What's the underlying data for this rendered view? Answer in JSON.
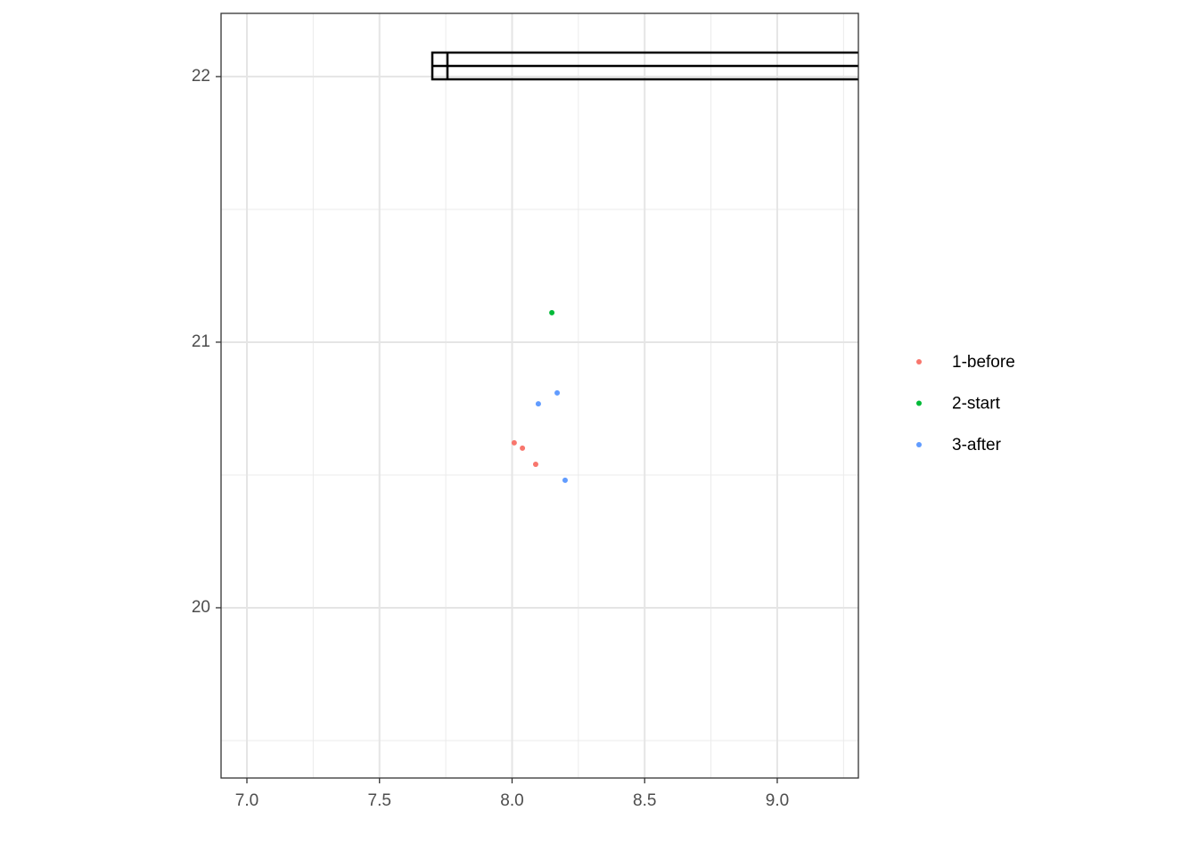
{
  "chart_data": {
    "type": "scatter",
    "series": [
      {
        "name": "1-before",
        "color": "#f8766d",
        "x": [
          8.008,
          8.039,
          8.089
        ],
        "values": [
          20.621,
          20.601,
          20.54
        ]
      },
      {
        "name": "2-start",
        "color": "#00ba38",
        "x": [
          8.15
        ],
        "values": [
          21.111
        ]
      },
      {
        "name": "3-after",
        "color": "#619cff",
        "x": [
          8.099,
          8.17,
          8.2
        ],
        "values": [
          20.768,
          20.809,
          20.48
        ]
      }
    ],
    "xlim": [
      6.9025,
      9.306
    ],
    "ylim": [
      19.359,
      22.238
    ],
    "xticks": [
      {
        "value": 7,
        "label": "7.0"
      },
      7.5,
      {
        "value": 8,
        "label": "8.0"
      },
      8.5,
      {
        "value": 9,
        "label": "9.0"
      }
    ],
    "yticks": [
      20,
      21,
      22
    ],
    "xminor": [
      7.25,
      7.75,
      8.25,
      8.75,
      9.25
    ],
    "yminor": [
      19.5,
      20.5,
      21.5
    ],
    "grid": true,
    "legend": "right"
  }
}
